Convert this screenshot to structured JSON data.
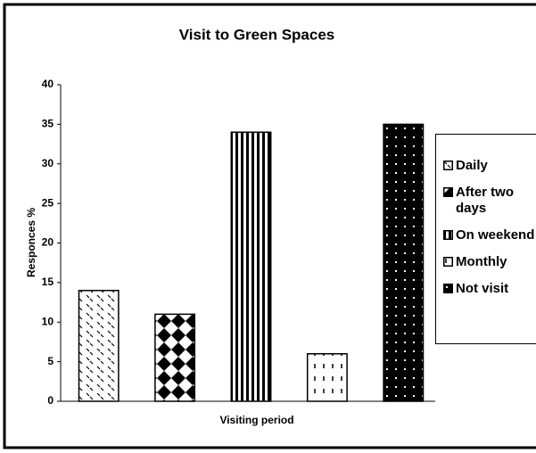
{
  "chart_data": {
    "type": "bar",
    "title": "Visit to Green Spaces",
    "x_label": "Visiting period",
    "y_label": "Responces %",
    "categories": [
      null
    ],
    "series": [
      {
        "name": "Daily",
        "color": "#000000",
        "pattern": "diagonal-dash",
        "values": [
          14
        ]
      },
      {
        "name": "After two days",
        "color": "#000000",
        "pattern": "checker",
        "values": [
          11
        ]
      },
      {
        "name": "On weekend",
        "color": "#000000",
        "pattern": "vertical-stripe",
        "values": [
          34
        ]
      },
      {
        "name": "Monthly",
        "color": "#000000",
        "pattern": "dash",
        "values": [
          6
        ]
      },
      {
        "name": "Not visit",
        "color": "#000000",
        "pattern": "dots",
        "values": [
          35
        ]
      }
    ],
    "ylim": [
      0,
      40
    ],
    "yticks": [
      0,
      5,
      10,
      15,
      20,
      25,
      30,
      35,
      40
    ],
    "grid": false,
    "legend": "right"
  }
}
